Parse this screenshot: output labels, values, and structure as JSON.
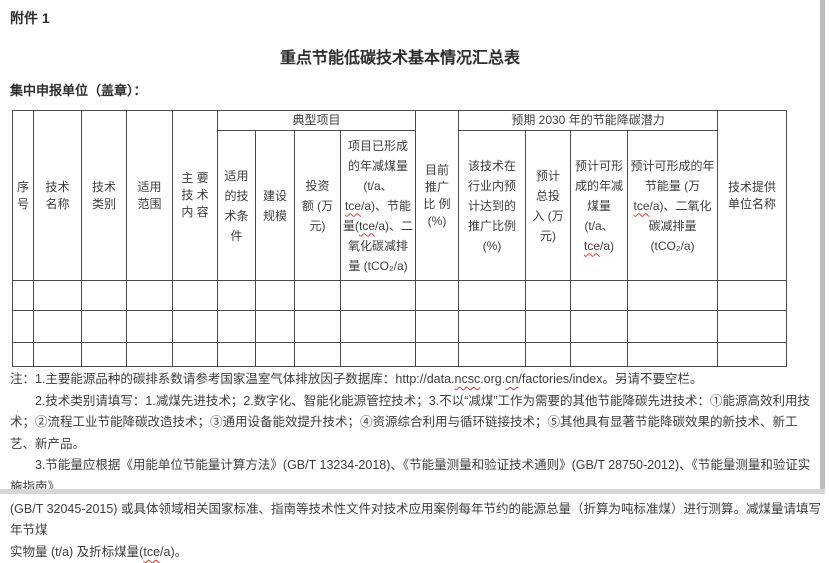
{
  "page": {
    "attachment_label": "附件 1",
    "title": "重点节能低碳技术基本情况汇总表",
    "declaring_unit_label": "集中申报单位（盖章）："
  },
  "table": {
    "headers": {
      "seq": "序\n号",
      "tech_name": "技术\n名称",
      "tech_category": "技术\n类别",
      "scope": "适用\n范围",
      "main_content": "主 要\n技 术\n内 容",
      "current_promotion": "目前\n推广\n比 例\n(%)",
      "provider": "技术提供\n单位名称"
    },
    "typical_project": {
      "title": "典型项目",
      "applicable_conditions": "适用\n的技\n术条\n件",
      "construction_scale": "建设\n规模",
      "investment": "投资\n额 (万\n元)",
      "formed_reduction": [
        {
          "t": "项目已形成\n的年减煤量\n(t/a、\n"
        },
        {
          "t": "tce",
          "u": true
        },
        {
          "t": "/a)、节能\n量("
        },
        {
          "t": "tce",
          "u": true
        },
        {
          "t": "/a)、二\n氧化碳减排\n量 (tCO₂/a)"
        }
      ]
    },
    "potential_2030": {
      "title": "预期 2030 年的节能降碳潜力",
      "expected_promotion": "该技术在\n行业内预\n计达到的\n推广比例\n(%)",
      "expected_investment": "预计\n总投\n入 (万\n元)",
      "expected_coal_reduction": [
        {
          "t": "预计可形\n成的年减\n煤量\n(t/a、\n"
        },
        {
          "t": "tce",
          "u": true
        },
        {
          "t": "/a)"
        }
      ],
      "expected_energy_saving": [
        {
          "t": "预计可形成的年\n节能量 (万\n"
        },
        {
          "t": "tce",
          "u": true
        },
        {
          "t": "/a)、二氧化\n碳减排量\n(tCO₂/a)"
        }
      ]
    },
    "empty_rows": 3
  },
  "notes": [
    [
      {
        "t": "注：1.主要能源品种的碳排系数请参考国家温室气体排放因子数据库：http://data."
      },
      {
        "t": "ncsc",
        "u": true
      },
      {
        "t": ".org."
      },
      {
        "t": "cn",
        "u": true
      },
      {
        "t": "/factories/index。另请不要空栏。"
      }
    ],
    [
      {
        "t": "2.技术类别请填写：1.减煤先进技术；2.数字化、智能化能源管控技术；3.不以“减煤”工作为需要的其他节能降碳先进技术：①能源高效利用技术；②流程工业节能降碳改造技术；③通用设备能效提升技术；④资源综合利用与循环链接技术；⑤其他具有显著节能降碳效果的新技术、新工艺、新产品。"
      }
    ],
    [
      {
        "t": "3.节能量应根据《用能单位节能量计算方法》(GB/T 13234-2018)、《节能量测量和验证技术通则》(GB/T 28750-2012)、《节能量测量和验证实施指南》\n(GB/T 32045-2015) 或具体领域相关国家标准、指南等技术性文件对技术应用案例每年节约的能源总量（折算为吨标准煤）进行测算。减煤量请填写年节煤\n实物量 (t/a) 及折标煤量("
      },
      {
        "t": "tce",
        "u": true
      },
      {
        "t": "/a)。"
      }
    ]
  ]
}
